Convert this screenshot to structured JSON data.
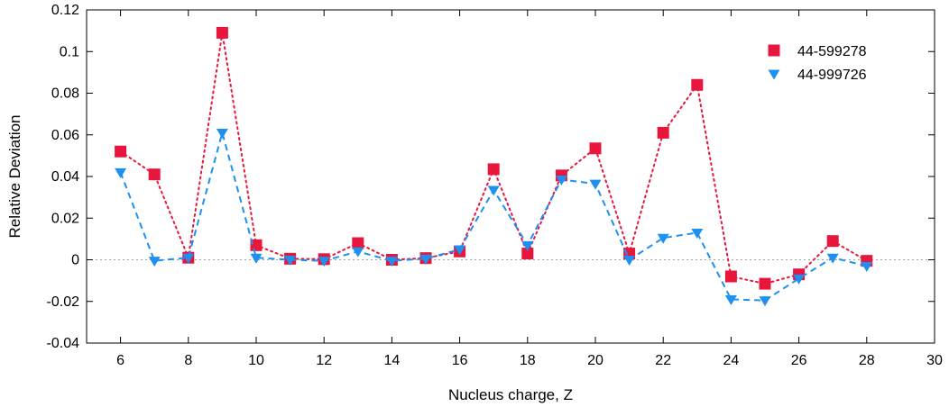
{
  "chart_data": {
    "type": "line",
    "xlabel": "Nucleus charge, Z",
    "ylabel": "Relative Deviation",
    "xlim": [
      5,
      30
    ],
    "ylim": [
      -0.04,
      0.12
    ],
    "xticks": [
      6,
      8,
      10,
      12,
      14,
      16,
      18,
      20,
      22,
      24,
      26,
      28,
      30
    ],
    "yticks": [
      -0.04,
      -0.02,
      0,
      0.02,
      0.04,
      0.06,
      0.08,
      0.1,
      0.12
    ],
    "ytick_labels": [
      "-0.04",
      "-0.02",
      "0",
      "0.02",
      "0.04",
      "0.06",
      "0.08",
      "0.1",
      "0.12"
    ],
    "zero_line": true,
    "legend_position": "top-right",
    "series": [
      {
        "name": "44-599278",
        "color": "#e8163c",
        "marker": "square",
        "line_style": "dotted",
        "x": [
          6,
          7,
          8,
          9,
          10,
          11,
          12,
          13,
          14,
          15,
          16,
          17,
          18,
          19,
          20,
          21,
          22,
          23,
          24,
          25,
          26,
          27,
          28
        ],
        "y": [
          0.052,
          0.041,
          0.001,
          0.109,
          0.007,
          0.0005,
          0.0003,
          0.008,
          0.0,
          0.0008,
          0.004,
          0.0435,
          0.003,
          0.0405,
          0.0535,
          0.003,
          0.061,
          0.084,
          -0.008,
          -0.0115,
          -0.007,
          0.009,
          -0.0005
        ]
      },
      {
        "name": "44-999726",
        "color": "#1e90f0",
        "marker": "triangle-down",
        "line_style": "dashed",
        "x": [
          6,
          7,
          8,
          9,
          10,
          11,
          12,
          13,
          14,
          15,
          16,
          17,
          18,
          19,
          20,
          21,
          22,
          23,
          24,
          25,
          26,
          27,
          28
        ],
        "y": [
          0.042,
          -0.0005,
          0.001,
          0.061,
          0.001,
          0.0,
          -0.0005,
          0.004,
          -0.0005,
          0.0005,
          0.005,
          0.0335,
          0.007,
          0.0385,
          0.0365,
          0.0,
          0.0105,
          0.013,
          -0.019,
          -0.0195,
          -0.009,
          0.001,
          -0.003
        ]
      }
    ]
  }
}
